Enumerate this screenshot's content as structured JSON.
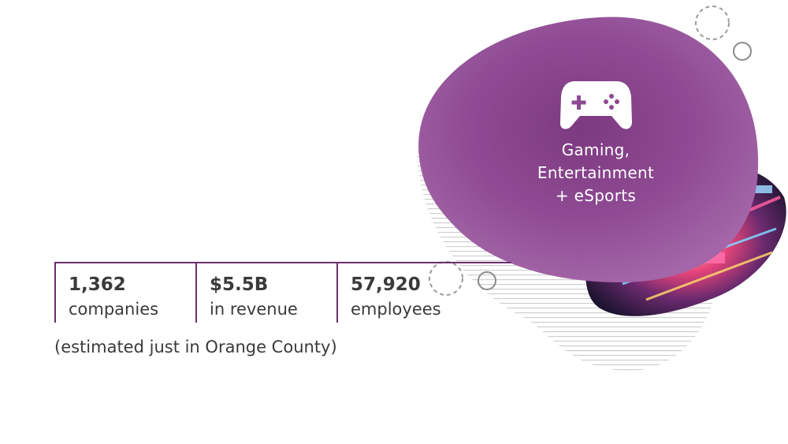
{
  "feature": {
    "icon": "gamepad-icon",
    "title_lines": [
      "Gaming,",
      "Entertainment",
      "+ eSports"
    ],
    "accent_color": "#8e4a92"
  },
  "stats": [
    {
      "value": "1,362",
      "label": "companies"
    },
    {
      "value": "$5.5B",
      "label": "in revenue"
    },
    {
      "value": "57,920",
      "label": "employees"
    }
  ],
  "footnote": "(estimated just in Orange County)"
}
